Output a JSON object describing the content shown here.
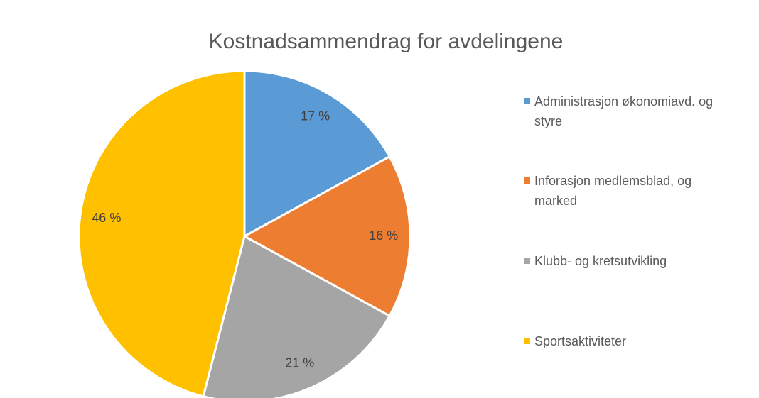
{
  "chart_data": {
    "type": "pie",
    "title": "Kostnadsammendrag for avdelingene",
    "categories": [
      "Administrasjon økonomiavd. og styre",
      "Inforasjon medlemsblad, og marked",
      "Klubb- og kretsutvikling",
      "Sportsaktiviteter"
    ],
    "values": [
      17,
      16,
      21,
      46
    ],
    "value_labels": [
      "17 %",
      "16 %",
      "21 %",
      "46 %"
    ],
    "colors": [
      "#5b9bd5",
      "#ed7d31",
      "#a5a5a5",
      "#ffc000"
    ],
    "legend": "right"
  }
}
